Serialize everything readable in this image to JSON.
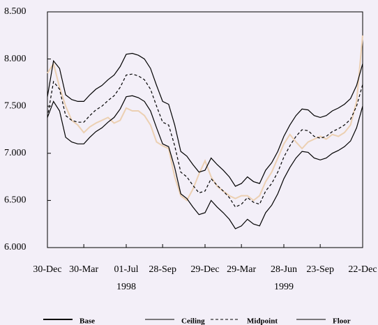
{
  "chart_data": {
    "type": "line",
    "categories": [
      "30-Dec",
      null,
      null,
      null,
      null,
      null,
      "30-Mar",
      null,
      null,
      null,
      null,
      null,
      null,
      "01-Jul",
      null,
      null,
      null,
      null,
      null,
      "28-Sep",
      null,
      null,
      null,
      null,
      null,
      null,
      "29-Dec",
      null,
      null,
      null,
      null,
      null,
      "29-Mar",
      null,
      null,
      null,
      null,
      null,
      null,
      "28-Jun",
      null,
      null,
      null,
      null,
      null,
      "23-Sep",
      null,
      null,
      null,
      null,
      null,
      null,
      "22-Dec"
    ],
    "x_group_labels": [
      "1998",
      "1999"
    ],
    "ylim": [
      6,
      8.5
    ],
    "yticks": [
      {
        "value": 6,
        "label": "6.000"
      },
      {
        "value": 6.5,
        "label": "6.500"
      },
      {
        "value": 7,
        "label": "7.000"
      },
      {
        "value": 7.5,
        "label": "7.500"
      },
      {
        "value": 8,
        "label": "8.000"
      },
      {
        "value": 8.5,
        "label": "8.500"
      }
    ],
    "series": [
      {
        "name": "Base",
        "color": "#ecd0b2",
        "dash": false,
        "values": [
          7.85,
          7.95,
          7.7,
          7.5,
          7.35,
          7.3,
          7.22,
          7.28,
          7.32,
          7.35,
          7.38,
          7.32,
          7.35,
          7.48,
          7.45,
          7.45,
          7.4,
          7.3,
          7.12,
          7.08,
          7.05,
          6.75,
          6.55,
          6.5,
          6.62,
          6.78,
          6.92,
          6.75,
          6.65,
          6.6,
          6.55,
          6.52,
          6.55,
          6.55,
          6.5,
          6.55,
          6.7,
          6.8,
          6.95,
          7.1,
          7.2,
          7.12,
          7.05,
          7.12,
          7.15,
          7.18,
          7.15,
          7.2,
          7.18,
          7.22,
          7.3,
          7.55,
          8.25
        ]
      },
      {
        "name": "Ceiling",
        "color": "#000000",
        "dash": false,
        "values": [
          7.6,
          7.98,
          7.9,
          7.62,
          7.57,
          7.55,
          7.55,
          7.62,
          7.68,
          7.72,
          7.78,
          7.83,
          7.92,
          8.05,
          8.06,
          8.04,
          8.0,
          7.9,
          7.72,
          7.55,
          7.52,
          7.3,
          7.02,
          6.97,
          6.88,
          6.8,
          6.82,
          6.95,
          6.88,
          6.82,
          6.75,
          6.65,
          6.68,
          6.75,
          6.7,
          6.68,
          6.82,
          6.9,
          7.02,
          7.18,
          7.3,
          7.4,
          7.47,
          7.46,
          7.4,
          7.38,
          7.4,
          7.45,
          7.48,
          7.52,
          7.58,
          7.72,
          7.95
        ]
      },
      {
        "name": "Midpoint",
        "color": "#000000",
        "dash": true,
        "values": [
          7.38,
          7.76,
          7.68,
          7.4,
          7.35,
          7.33,
          7.33,
          7.4,
          7.46,
          7.5,
          7.56,
          7.61,
          7.7,
          7.83,
          7.84,
          7.82,
          7.78,
          7.68,
          7.5,
          7.33,
          7.3,
          7.08,
          6.8,
          6.75,
          6.66,
          6.58,
          6.6,
          6.73,
          6.66,
          6.6,
          6.53,
          6.43,
          6.46,
          6.53,
          6.48,
          6.46,
          6.6,
          6.68,
          6.8,
          6.96,
          7.08,
          7.18,
          7.25,
          7.24,
          7.18,
          7.16,
          7.18,
          7.23,
          7.26,
          7.3,
          7.36,
          7.5,
          7.73
        ]
      },
      {
        "name": "Floor",
        "color": "#000000",
        "dash": false,
        "values": [
          7.38,
          7.55,
          7.45,
          7.17,
          7.12,
          7.1,
          7.1,
          7.17,
          7.23,
          7.27,
          7.33,
          7.38,
          7.47,
          7.6,
          7.61,
          7.59,
          7.55,
          7.45,
          7.27,
          7.1,
          7.07,
          6.85,
          6.57,
          6.52,
          6.43,
          6.35,
          6.37,
          6.5,
          6.43,
          6.37,
          6.3,
          6.2,
          6.23,
          6.3,
          6.25,
          6.23,
          6.37,
          6.45,
          6.57,
          6.73,
          6.85,
          6.95,
          7.02,
          7.01,
          6.95,
          6.93,
          6.95,
          7.0,
          7.03,
          7.07,
          7.13,
          7.27,
          7.5
        ]
      }
    ]
  }
}
